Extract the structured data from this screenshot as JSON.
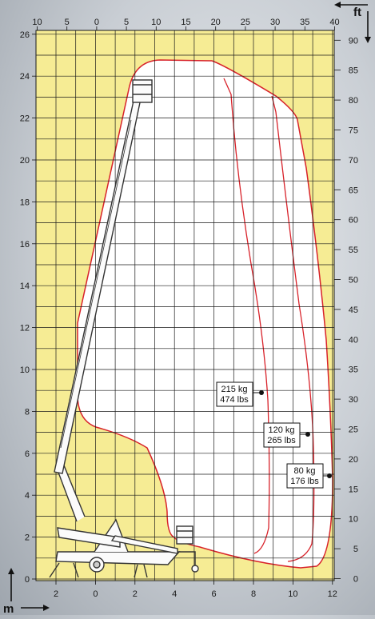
{
  "units": {
    "metric": "m",
    "imperial": "ft"
  },
  "axes": {
    "left_m": [
      "0",
      "2",
      "4",
      "6",
      "8",
      "10",
      "12",
      "14",
      "16",
      "18",
      "20",
      "22",
      "24",
      "26"
    ],
    "bottom_m": [
      "2",
      "0",
      "2",
      "4",
      "6",
      "8",
      "10",
      "12"
    ],
    "top_ft": [
      "10",
      "5",
      "0",
      "5",
      "10",
      "15",
      "20",
      "25",
      "30",
      "35",
      "40"
    ],
    "right_ft": [
      "0",
      "5",
      "10",
      "15",
      "20",
      "25",
      "30",
      "35",
      "40",
      "45",
      "50",
      "55",
      "60",
      "65",
      "70",
      "75",
      "80",
      "85",
      "90"
    ]
  },
  "load_zones": [
    {
      "kg": "215 kg",
      "lbs": "474 lbs"
    },
    {
      "kg": "120 kg",
      "lbs": "265 lbs"
    },
    {
      "kg": "80 kg",
      "lbs": "176 lbs"
    }
  ],
  "colors": {
    "grid_fill": "#f6ec94",
    "envelope_fill": "#ffffff",
    "envelope_line": "#d8222a",
    "grid_line": "#1a1a1a"
  }
}
